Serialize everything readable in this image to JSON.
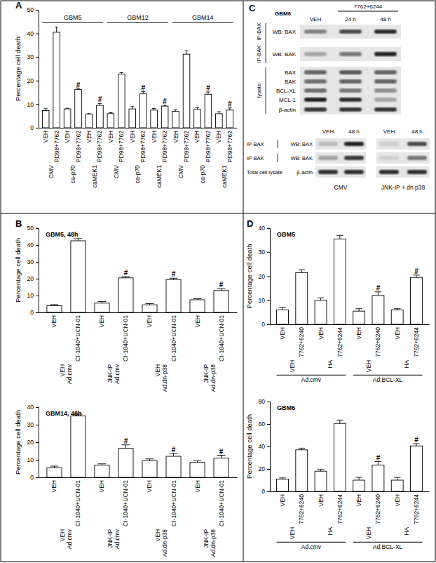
{
  "chart_data": [
    {
      "type": "bar",
      "panel": "A",
      "y_label": "Percentage cell death",
      "categories": [
        "VEH",
        "PD98+7762",
        "VEH",
        "PD98+7762",
        "VEH",
        "PD98+7762",
        "VEH",
        "PD98+7762",
        "VEH",
        "PD98+7762",
        "VEH",
        "PD98+7762",
        "VEH",
        "PD98+7762",
        "VEH",
        "PD98+7762",
        "VEH",
        "PD98+7762"
      ],
      "group_levels": [
        [
          "CMV",
          "ca-p70",
          "caMEK1",
          "CMV",
          "ca-p70",
          "caMEK1",
          "CMV",
          "ca-p70",
          "caMEK1"
        ],
        [
          "GBM5",
          "GBM12",
          "GBM14"
        ]
      ],
      "values": [
        7.3,
        40.5,
        8,
        16.2,
        5.8,
        9.5,
        6,
        22.8,
        8,
        14.5,
        7.5,
        9.2,
        7,
        31.2,
        7.8,
        14.2,
        6,
        7.5
      ],
      "errors": [
        0.8,
        2.2,
        0.3,
        0.3,
        0.2,
        0.8,
        0.4,
        0.6,
        1,
        0.8,
        0.7,
        0.3,
        0.6,
        1.4,
        0.8,
        1,
        0.8,
        0.9
      ],
      "annotations": [
        null,
        null,
        null,
        "#",
        null,
        "#",
        null,
        null,
        null,
        "#",
        null,
        "#",
        null,
        null,
        null,
        "#",
        null,
        "#"
      ],
      "color": "#ffffff",
      "ylim": [
        0,
        50
      ],
      "yticks": [
        0,
        10,
        20,
        30,
        40,
        50
      ]
    },
    {
      "type": "bar",
      "panel": "B",
      "title": "GBM5, 48h",
      "y_label": "Percentage cell death",
      "categories": [
        "VEH",
        "CI-1040+UCN-01",
        "VEH",
        "CI-1040+UCN-01",
        "VEH",
        "CI-1040+UCN-01",
        "VEH",
        "CI-1040+UCN-01"
      ],
      "group_levels": [
        [
          "VEH",
          "JNK-IP",
          "VEH",
          "JNK-IP"
        ],
        [
          "Ad.cmv",
          "Ad.cmv",
          "Ad.dn-p38",
          "Ad.dn-p38"
        ]
      ],
      "values": [
        4,
        42.5,
        5.5,
        20.5,
        4.5,
        19.5,
        7.5,
        13
      ],
      "errors": [
        0.6,
        1.3,
        0.9,
        0.7,
        0.7,
        0.8,
        0.6,
        1.1
      ],
      "annotations": [
        null,
        null,
        null,
        "#",
        null,
        "#",
        null,
        "#"
      ],
      "color": "#ffffff",
      "ylim": [
        0,
        50
      ],
      "yticks": [
        0,
        10,
        20,
        30,
        40,
        50
      ]
    },
    {
      "type": "bar",
      "title": "GBM14, 48h",
      "y_label": "Percentage cell death",
      "categories": [
        "VEH",
        "CI-1040+UCN-01",
        "VEH",
        "CI-1040+UCN-01",
        "VEH",
        "CI-1040+UCN-01",
        "VEH",
        "CI-1040+UCN-01"
      ],
      "group_levels": [
        [
          "VEH",
          "JNK-IP",
          "VEH",
          "JNK-IP"
        ],
        [
          "Ad.cmv",
          "Ad.cmv",
          "Ad.dn-p38",
          "Ad.dn-p38"
        ]
      ],
      "values": [
        5.5,
        35,
        7,
        16.5,
        9.5,
        12,
        8.5,
        11
      ],
      "errors": [
        0.9,
        1,
        0.7,
        2,
        1,
        1.8,
        0.9,
        1.6
      ],
      "annotations": [
        null,
        null,
        null,
        "#",
        null,
        "#",
        null,
        "#"
      ],
      "color": "#ffffff",
      "ylim": [
        0,
        40
      ],
      "yticks": [
        0,
        10,
        20,
        30,
        40
      ]
    },
    {
      "type": "bar",
      "panel": "D",
      "title": "GBM5",
      "y_label": "Percentage cell death",
      "categories": [
        "VEH",
        "7762+6240",
        "VEH",
        "7762+6244",
        "VEH",
        "7762+6240",
        "VEH",
        "7762+6244"
      ],
      "group_levels": [
        [
          "VEH",
          "HA",
          "VEH",
          "HA"
        ],
        [
          "Ad.cmv",
          "Ad.BCL-XL"
        ]
      ],
      "values": [
        6,
        21.5,
        10,
        35.5,
        5.5,
        12,
        6,
        19.5
      ],
      "errors": [
        1,
        1.2,
        1,
        1.5,
        1,
        1.5,
        0.5,
        1
      ],
      "annotations": [
        null,
        null,
        null,
        null,
        null,
        "#",
        null,
        "#"
      ],
      "color": "#ffffff",
      "ylim": [
        0,
        40
      ],
      "yticks": [
        0,
        10,
        20,
        30,
        40
      ]
    },
    {
      "type": "bar",
      "title": "GBM6",
      "y_label": "Percentage cell death",
      "categories": [
        "VEH",
        "7762+6240",
        "VEH",
        "7762+6244",
        "VEH",
        "7762+6240",
        "VEH",
        "7762+6244"
      ],
      "group_levels": [
        [
          "VEH",
          "HA",
          "VEH",
          "HA"
        ],
        [
          "Ad.cmv",
          "Ad.BCL-XL"
        ]
      ],
      "values": [
        11,
        37,
        18,
        60.5,
        10,
        23.5,
        10,
        40.5
      ],
      "errors": [
        1,
        1.5,
        1.5,
        3,
        2.5,
        3,
        2.5,
        2
      ],
      "annotations": [
        null,
        null,
        null,
        null,
        null,
        "#",
        null,
        "#"
      ],
      "color": "#ffffff",
      "ylim": [
        0,
        80
      ],
      "yticks": [
        0,
        20,
        40,
        60,
        80
      ]
    }
  ],
  "blot": {
    "panel": "C",
    "cell_line": "GBM6",
    "top": {
      "lanes": [
        "VEH",
        "24 h",
        "48 h"
      ],
      "treatment": "7762+6244",
      "ip_rows": [
        {
          "ip": "IP-BAX",
          "wb": "WB: BAX"
        },
        {
          "ip": "IP-BAK",
          "wb": "WB: BAK"
        }
      ],
      "lysate_label": "lysate",
      "lysate_rows": [
        "BAX",
        "BAK",
        "BCL-XL",
        "MCL-1",
        "β-actin"
      ]
    },
    "bottom": {
      "lanes": [
        "VEH",
        "48 h",
        "VEH",
        "48 h"
      ],
      "rows": [
        {
          "ip": "IP-BAX",
          "wb": "WB: BAX"
        },
        {
          "ip": "IP-BAK",
          "wb": "WB: BAK"
        },
        {
          "ip": "Total cell lysate",
          "wb": "β-actin"
        }
      ],
      "conditions": [
        "CMV",
        "JNK-IP + dn p38"
      ]
    }
  }
}
